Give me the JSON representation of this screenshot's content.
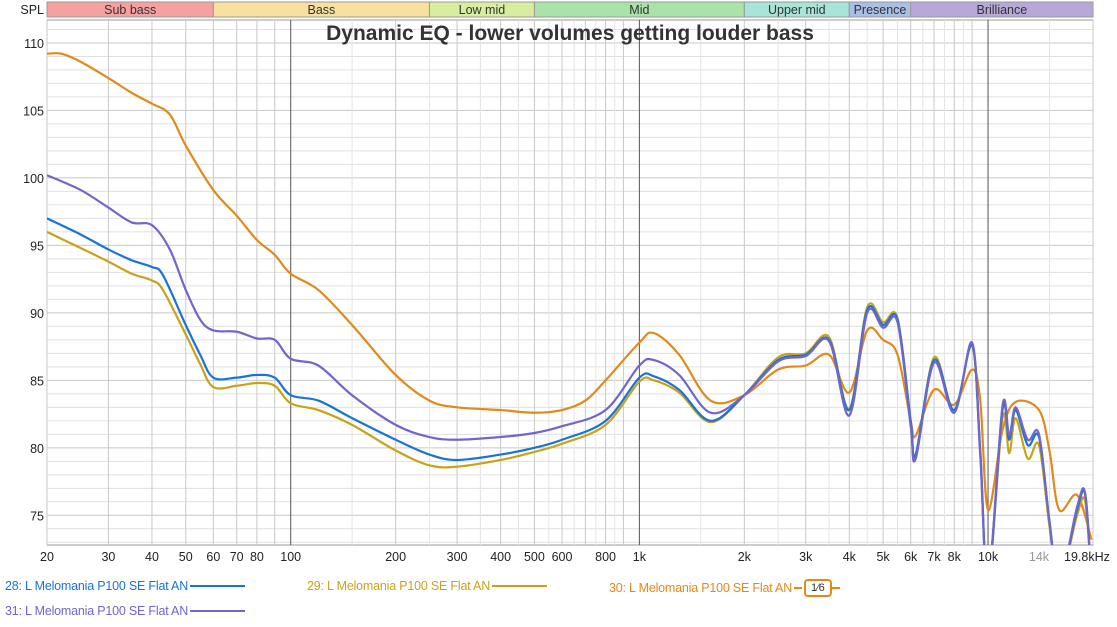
{
  "chart_data": {
    "type": "line",
    "title": "Dynamic EQ - lower volumes getting louder bass",
    "ylabel": "SPL",
    "xscale": "log",
    "xlim": [
      20,
      20000
    ],
    "ylim": [
      72.8,
      111.7
    ],
    "grid": true,
    "y_ticks": [
      75,
      80,
      85,
      90,
      95,
      100,
      105,
      110
    ],
    "x_ticks": [
      {
        "f": 20,
        "label": "20"
      },
      {
        "f": 30,
        "label": "30"
      },
      {
        "f": 40,
        "label": "40"
      },
      {
        "f": 50,
        "label": "50"
      },
      {
        "f": 60,
        "label": "60"
      },
      {
        "f": 70,
        "label": "70"
      },
      {
        "f": 80,
        "label": "80"
      },
      {
        "f": 100,
        "label": "100"
      },
      {
        "f": 200,
        "label": "200"
      },
      {
        "f": 300,
        "label": "300"
      },
      {
        "f": 400,
        "label": "400"
      },
      {
        "f": 500,
        "label": "500"
      },
      {
        "f": 600,
        "label": "600"
      },
      {
        "f": 800,
        "label": "800"
      },
      {
        "f": 1000,
        "label": "1k"
      },
      {
        "f": 2000,
        "label": "2k"
      },
      {
        "f": 3000,
        "label": "3k"
      },
      {
        "f": 4000,
        "label": "4k"
      },
      {
        "f": 5000,
        "label": "5k"
      },
      {
        "f": 6000,
        "label": "6k"
      },
      {
        "f": 7000,
        "label": "7k"
      },
      {
        "f": 8000,
        "label": "8k"
      },
      {
        "f": 10000,
        "label": "10k"
      },
      {
        "f": 14000,
        "label": "14k",
        "muted": true
      },
      {
        "f": 19800,
        "label": "19.8kHz"
      }
    ],
    "bands": [
      {
        "label": "Sub bass",
        "from": 20,
        "to": 60,
        "color": "#f7a0a0"
      },
      {
        "label": "Bass",
        "from": 60,
        "to": 250,
        "color": "#f7e0a0"
      },
      {
        "label": "Low mid",
        "from": 250,
        "to": 500,
        "color": "#d8eda0"
      },
      {
        "label": "Mid",
        "from": 500,
        "to": 2000,
        "color": "#a8e4a8"
      },
      {
        "label": "Upper mid",
        "from": 2000,
        "to": 4000,
        "color": "#a8e4d8"
      },
      {
        "label": "Presence",
        "from": 4000,
        "to": 6000,
        "color": "#a8c0e8"
      },
      {
        "label": "Brilliance",
        "from": 6000,
        "to": 20000,
        "color": "#b8a8d8"
      }
    ],
    "series": [
      {
        "name": "28: L Melomania P100 SE Flat AN",
        "color": "#1a73d8",
        "f": [
          20,
          25,
          30,
          35,
          40,
          43,
          50,
          55,
          60,
          70,
          80,
          90,
          100,
          120,
          150,
          200,
          250,
          300,
          400,
          500,
          600,
          800,
          1000,
          1100,
          1300,
          1600,
          2000,
          2500,
          3000,
          3500,
          4000,
          4500,
          5000,
          5500,
          6000,
          6200,
          7000,
          8000,
          9000,
          9500,
          10000,
          11000,
          11500,
          12000,
          13000,
          14000,
          15000,
          16000,
          18000,
          19000,
          19800
        ],
        "db": [
          97.0,
          95.8,
          94.7,
          93.9,
          93.4,
          92.8,
          89.1,
          86.9,
          85.2,
          85.2,
          85.4,
          85.2,
          83.9,
          83.5,
          82.2,
          80.6,
          79.5,
          79.1,
          79.5,
          80.0,
          80.6,
          82.0,
          85.2,
          85.3,
          84.3,
          82.0,
          83.9,
          86.5,
          86.9,
          88.0,
          82.8,
          90.2,
          89.1,
          89.5,
          82.0,
          79.5,
          86.5,
          82.8,
          87.6,
          79.8,
          70,
          82.8,
          80.6,
          82.8,
          80.2,
          80.8,
          74.6,
          70,
          75.4,
          76.5,
          70
        ]
      },
      {
        "name": "29: L Melomania P100 SE Flat AN",
        "color": "#c9a21a",
        "f": [
          20,
          25,
          30,
          35,
          40,
          43,
          50,
          55,
          60,
          70,
          80,
          90,
          100,
          120,
          150,
          200,
          250,
          300,
          400,
          500,
          600,
          800,
          1000,
          1100,
          1300,
          1600,
          2000,
          2500,
          3000,
          3500,
          4000,
          4500,
          5000,
          5500,
          6000,
          6200,
          7000,
          8000,
          9000,
          9500,
          10000,
          11000,
          11500,
          12000,
          13000,
          14000,
          15000,
          16000,
          18000,
          19000,
          19800
        ],
        "db": [
          96.0,
          94.8,
          93.8,
          92.9,
          92.4,
          91.7,
          88.4,
          86.2,
          84.5,
          84.6,
          84.8,
          84.6,
          83.3,
          82.8,
          81.7,
          79.8,
          78.7,
          78.6,
          79.1,
          79.7,
          80.3,
          81.7,
          84.9,
          85.0,
          84.1,
          81.9,
          83.9,
          86.7,
          87.0,
          88.2,
          82.9,
          90.4,
          89.3,
          89.6,
          81.8,
          79.2,
          86.7,
          82.7,
          87.6,
          79.5,
          70,
          82.2,
          79.6,
          82.2,
          79.2,
          80.2,
          74.2,
          70,
          75.0,
          76.0,
          70
        ]
      },
      {
        "name": "30: L Melomania P100 SE Flat AN",
        "color": "#e08a1c",
        "smoothing": "1/6",
        "f": [
          20,
          22,
          25,
          30,
          35,
          40,
          45,
          50,
          60,
          70,
          80,
          90,
          100,
          120,
          150,
          200,
          250,
          300,
          400,
          500,
          600,
          700,
          800,
          1000,
          1100,
          1300,
          1600,
          2000,
          2500,
          3000,
          3500,
          4000,
          4500,
          5000,
          5500,
          6000,
          6200,
          7000,
          8000,
          9000,
          9500,
          10000,
          11000,
          12000,
          14000,
          15000,
          16000,
          18000,
          19800
        ],
        "db": [
          109.2,
          109.2,
          108.6,
          107.4,
          106.3,
          105.5,
          104.7,
          102.4,
          99.1,
          97.2,
          95.4,
          94.3,
          92.9,
          91.7,
          89.1,
          85.4,
          83.5,
          83.0,
          82.8,
          82.6,
          82.8,
          83.5,
          85.0,
          87.8,
          88.5,
          86.9,
          83.5,
          83.9,
          85.8,
          86.1,
          86.9,
          84.1,
          88.7,
          88.0,
          86.9,
          82.0,
          80.9,
          84.3,
          83.2,
          85.8,
          83.5,
          75.4,
          81.3,
          83.4,
          82.8,
          79.8,
          75.4,
          76.5,
          73.2
        ]
      },
      {
        "name": "31: L Melomania P100 SE Flat AN",
        "color": "#7066cc",
        "f": [
          20,
          25,
          30,
          35,
          40,
          45,
          50,
          55,
          60,
          70,
          80,
          90,
          100,
          120,
          150,
          200,
          250,
          300,
          400,
          500,
          600,
          800,
          1000,
          1100,
          1300,
          1600,
          2000,
          2500,
          3000,
          3500,
          4000,
          4500,
          5000,
          5500,
          6000,
          6200,
          7000,
          8000,
          9000,
          9500,
          10000,
          11000,
          11500,
          12000,
          13000,
          14000,
          15000,
          16000,
          18000,
          19000,
          19800
        ],
        "db": [
          100.2,
          99.1,
          97.8,
          96.7,
          96.5,
          94.7,
          91.7,
          89.5,
          88.7,
          88.6,
          88.1,
          88.0,
          86.6,
          86.1,
          83.9,
          81.7,
          80.8,
          80.6,
          80.8,
          81.1,
          81.6,
          82.8,
          86.1,
          86.5,
          85.4,
          82.6,
          83.9,
          86.4,
          86.8,
          87.9,
          82.4,
          90.0,
          88.9,
          89.3,
          81.6,
          79.2,
          86.3,
          82.6,
          87.8,
          79.5,
          70,
          83.1,
          80.9,
          83.0,
          80.6,
          81.0,
          74.5,
          70,
          75.6,
          76.6,
          70
        ]
      }
    ]
  },
  "legend": {
    "items": [
      {
        "label": "28: L Melomania P100 SE Flat AN",
        "color": "#1a73d8"
      },
      {
        "label": "29: L Melomania P100 SE Flat AN",
        "color": "#c9a21a"
      },
      {
        "label": "30: L Melomania P100 SE Flat AN",
        "color": "#e08a1c",
        "badge": "1⁄6"
      },
      {
        "label": "31: L Melomania P100 SE Flat AN",
        "color": "#7066cc"
      }
    ]
  }
}
